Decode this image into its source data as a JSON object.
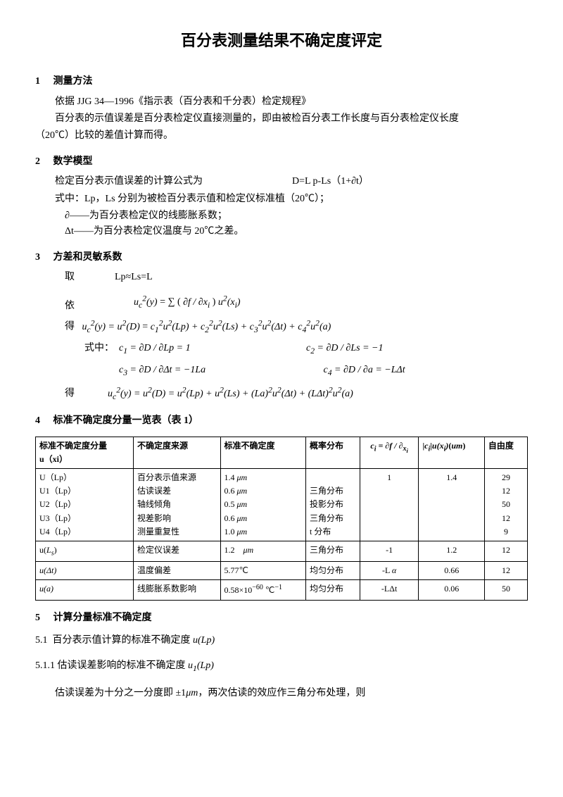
{
  "title": "百分表测量结果不确定度评定",
  "s1": {
    "num": "1",
    "head": "测量方法",
    "p1": "依据 JJG 34—1996《指示表（百分表和千分表）检定规程》",
    "p2": "百分表的示值误差是百分表检定仪直接测量的，即由被检百分表工作长度与百分表检定仪长度",
    "p3": "（20℃）比较的差值计算而得。"
  },
  "s2": {
    "num": "2",
    "head": "数学模型",
    "p1": "检定百分表示值误差的计算公式为",
    "f1": "D=L p-Ls（1+∂t）",
    "p2": "式中：Lp，Ls 分别为被检百分表示值和检定仪标准植（20℃）；",
    "p3": "∂——为百分表检定仪的线膨胀系数；",
    "p4": "Δt——为百分表检定仪温度与 20℃之差。"
  },
  "s3": {
    "num": "3",
    "head": "方差和灵敏系数",
    "t1": "取",
    "f1": "Lp≈Ls=L",
    "t2": "依",
    "f2_html": "<span class='math'>u<sub>c</sub><sup>2</sup>(y)</span> = ∑ ( <span class='math'>∂f / ∂x<sub>i</sub></span> ) <span class='math'>u<sup>2</sup>(x<sub>i</sub>)</span>",
    "t3": "得",
    "f3_html": "<span class='math'>u<sub>c</sub><sup>2</sup>(y) = u<sup>2</sup>(D)</span> = <span class='math'>c<sub>1</sub><sup>2</sup>u<sup>2</sup>(Lp) + c<sub>2</sub><sup>2</sup>u<sup>2</sup>(Ls) + c<sub>3</sub><sup>2</sup>u<sup>2</sup>(Δt) + c<sub>4</sub><sup>2</sup>u<sup>2</sup>(a)</span>",
    "t4": "式中：",
    "c1_html": "<span class='math'>c<sub>1</sub> = ∂D / ∂Lp = 1</span>",
    "c2_html": "<span class='math'>c<sub>2</sub> = ∂D / ∂Ls = −1</span>",
    "c3_html": "<span class='math'>c<sub>3</sub> = ∂D / ∂Δt = −1La</span>",
    "c4_html": "<span class='math'>c<sub>4</sub> = ∂D / ∂a = −LΔt</span>",
    "t5": "得",
    "f4_html": "<span class='math'>u<sub>c</sub><sup>2</sup>(y) = u<sup>2</sup>(D) = u<sup>2</sup>(Lp) + u<sup>2</sup>(Ls) + (La)<sup>2</sup>u<sup>2</sup>(Δt) + (LΔt)<sup>2</sup>u<sup>2</sup>(a)</span>"
  },
  "s4": {
    "num": "4",
    "head": "标准不确定度分量一览表（表 1）"
  },
  "table": {
    "headers": {
      "c1": "标准不确定度分量\nu（xi）",
      "c2": "不确定度来源",
      "c3": "标准不确定度",
      "c4": "概率分布",
      "c5_html": "<span class='math'>c<sub>i</sub> = ∂f / ∂<sub>x<sub>i</sub></sub></span>",
      "c6_html": "|<span class='math'>c<sub>i</sub></span>|<span class='math'>u(x<sub>i</sub>)</span>(<span class='math'>um</span>)",
      "c7": "自由度"
    },
    "rows": [
      {
        "c1": "U（Lp）\nU1（Lp）\nU2（Lp）\nU3（Lp）\nU4（Lp）",
        "c2": "百分表示值来源\n估读误差\n轴线倾角\n视差影响\n测量重复性",
        "c3_html": "1.4 <span class='math'>μm</span><br>0.6 <span class='math'>μm</span><br>0.5 <span class='math'>μm</span><br>0.6 <span class='math'>μm</span><br>1.0 <span class='math'>μm</span>",
        "c4": "\n三角分布\n投影分布\n三角分布\nt 分布",
        "c5": "1",
        "c6": "1.4",
        "c7": "29\n12\n50\n12\n9"
      },
      {
        "c1_html": "u(<span class='math'>L<sub>s</sub></span>)",
        "c2": "检定仪误差",
        "c3_html": "1.2&nbsp;&nbsp;&nbsp;&nbsp;<span class='math'>μm</span>",
        "c4": "三角分布",
        "c5": "-1",
        "c6": "1.2",
        "c7": "12"
      },
      {
        "c1_html": "<span class='math'>u(Δt)</span>",
        "c2": "温度偏差",
        "c3": "5.77℃",
        "c4": "均匀分布",
        "c5_html": "-L <span class='math'>α</span>",
        "c6": "0.66",
        "c7": "12"
      },
      {
        "c1_html": "<span class='math'>u(a)</span>",
        "c2": "线膨胀系数影响",
        "c3_html": "0.58×10<sup>−60</sup> ℃<sup>−1</sup>",
        "c4": "均匀分布",
        "c5": "-LΔt",
        "c6": "0.06",
        "c7": "50"
      }
    ]
  },
  "s5": {
    "num": "5",
    "head": "计算分量标准不确定度",
    "s51_num": "5.1",
    "s51_html": "百分表示值计算的标准不确定度 <span class='math'>u(Lp)</span>",
    "s511_num": "5.1.1",
    "s511_html": "估读误差影响的标准不确定度 <span class='math'>u<sub>1</sub>(Lp)</span>",
    "p1_html": "估读误差为十分之一分度即 ±1<span class='math'>μm</span>，两次估读的效应作三角分布处理，则"
  }
}
